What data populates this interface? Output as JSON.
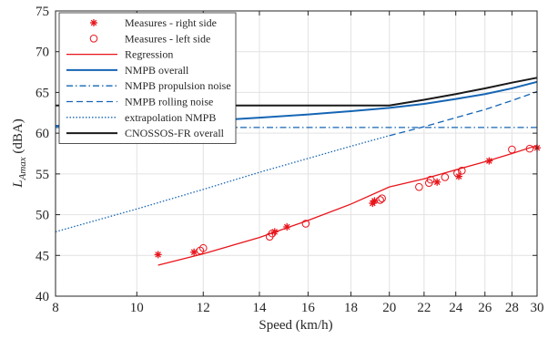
{
  "chart_data": {
    "type": "scatter",
    "xlabel": "Speed (km/h)",
    "ylabel_main": "L",
    "ylabel_sub": "Amax",
    "ylabel_unit": " (dBA)",
    "xlim": [
      8,
      30
    ],
    "ylim": [
      40,
      75
    ],
    "x_ticks": [
      8,
      10,
      12,
      14,
      16,
      18,
      20,
      22,
      24,
      26,
      28,
      30
    ],
    "y_ticks": [
      40,
      45,
      50,
      55,
      60,
      65,
      70,
      75
    ],
    "grid": true,
    "legend_position": "top-left",
    "colors": {
      "measures": "#e8141b",
      "nmpb": "#1565b4",
      "cnossos": "#1a1a1a",
      "grid": "#e2e2e2",
      "axis": "#262626"
    },
    "series": [
      {
        "name": "Measures - right side",
        "kind": "marker",
        "marker": "asterisk",
        "x": [
          10.6,
          11.7,
          14.6,
          15.1,
          19.1,
          19.2,
          22.8,
          24.2,
          26.3,
          30.0
        ],
        "y": [
          45.1,
          45.4,
          47.9,
          48.5,
          51.4,
          51.7,
          54.0,
          54.7,
          56.6,
          58.2
        ]
      },
      {
        "name": "Measures - left side",
        "kind": "marker",
        "marker": "circle",
        "x": [
          11.9,
          12.0,
          14.4,
          14.5,
          15.9,
          19.5,
          19.6,
          21.7,
          22.3,
          22.4,
          23.3,
          24.1,
          24.4,
          28.0,
          29.4
        ],
        "y": [
          45.6,
          45.9,
          47.3,
          47.7,
          48.9,
          51.8,
          52.0,
          53.4,
          53.9,
          54.3,
          54.6,
          55.1,
          55.4,
          58.0,
          58.1
        ]
      },
      {
        "name": "Regression",
        "kind": "line",
        "style": "solid",
        "x": [
          10.6,
          12,
          14,
          16,
          18,
          20,
          22,
          24,
          26,
          28,
          30
        ],
        "y": [
          43.8,
          45.2,
          47.2,
          49.3,
          51.3,
          53.4,
          54.4,
          55.5,
          56.5,
          57.5,
          58.5
        ]
      },
      {
        "name": "NMPB overall",
        "kind": "line",
        "style": "solid",
        "x": [
          8,
          10,
          12,
          14,
          16,
          18,
          20,
          22,
          24,
          26,
          28,
          30
        ],
        "y": [
          60.9,
          61.1,
          61.5,
          61.9,
          62.3,
          62.7,
          63.1,
          63.6,
          64.2,
          64.8,
          65.5,
          66.3
        ]
      },
      {
        "name": "NMPB propulsion noise",
        "kind": "line",
        "style": "dashdot",
        "x": [
          8,
          30
        ],
        "y": [
          60.7,
          60.7
        ]
      },
      {
        "name": "NMPB rolling noise",
        "kind": "line",
        "style": "dashed",
        "x": [
          20,
          22,
          24,
          26,
          28,
          30
        ],
        "y": [
          59.7,
          60.8,
          61.9,
          62.9,
          64.0,
          65.1
        ]
      },
      {
        "name": "extrapolation NMPB",
        "kind": "line",
        "style": "dotted",
        "x": [
          8,
          10,
          12,
          14,
          16,
          18,
          20
        ],
        "y": [
          47.9,
          50.7,
          53.1,
          55.2,
          56.9,
          58.4,
          59.7
        ]
      },
      {
        "name": "CNOSSOS-FR overall",
        "kind": "line",
        "style": "solid",
        "x": [
          8,
          20,
          22,
          24,
          26,
          28,
          30
        ],
        "y": [
          63.4,
          63.4,
          64.1,
          64.8,
          65.5,
          66.2,
          66.8
        ]
      }
    ]
  }
}
